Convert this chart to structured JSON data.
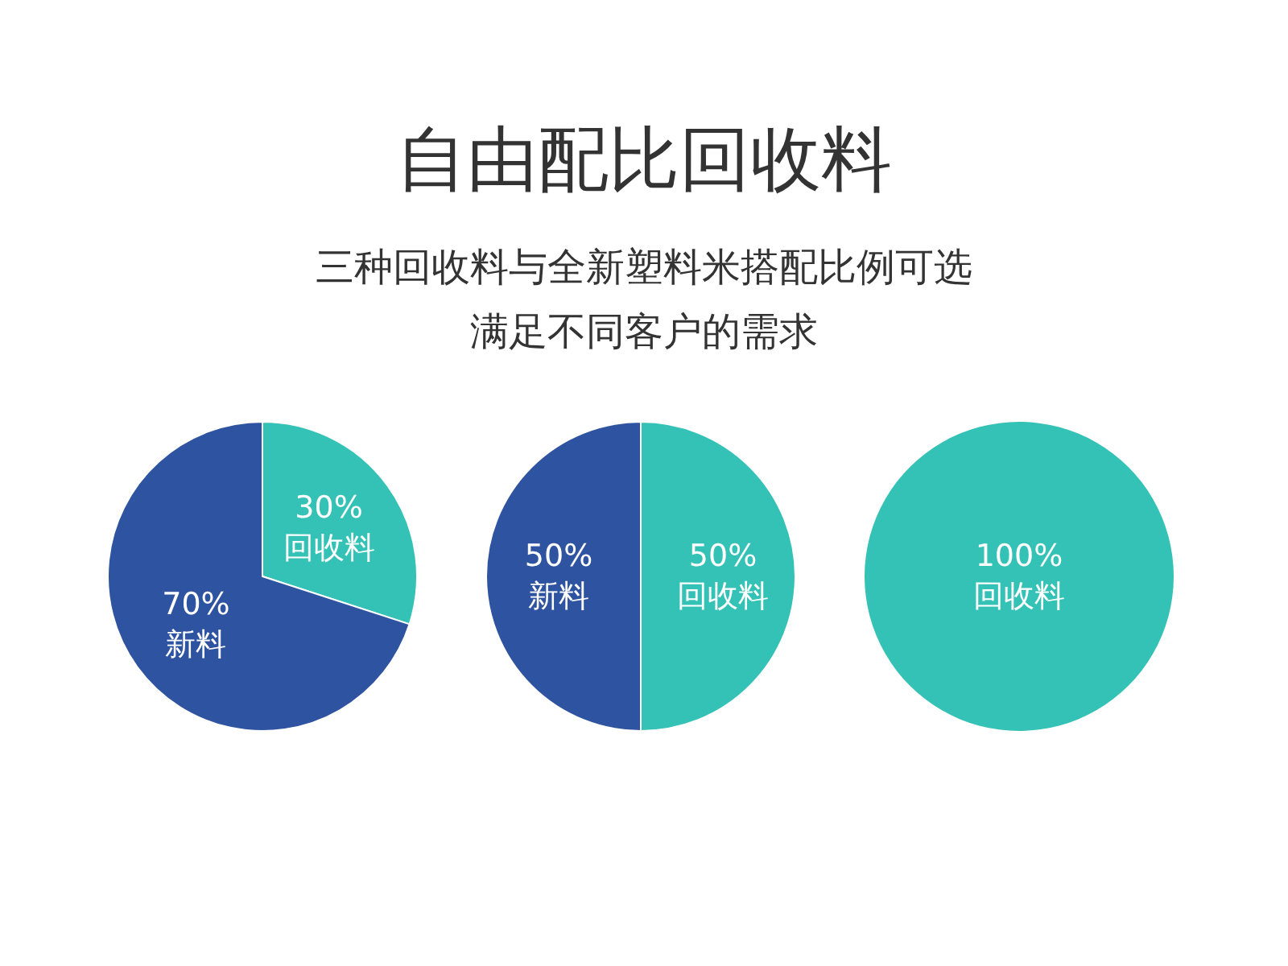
{
  "chart_data": [
    {
      "type": "other",
      "title": "自由配比回收料",
      "subtitle": "三种回收料与全新塑料米搭配比例可选满足不同客户的需求"
    },
    {
      "type": "pie",
      "categories": [
        "回收料",
        "新料"
      ],
      "values": [
        30,
        70
      ],
      "colors": [
        "#33c2b5",
        "#2e53a0"
      ],
      "value_labels": [
        "30%",
        "70%"
      ]
    },
    {
      "type": "pie",
      "categories": [
        "回收料",
        "新料"
      ],
      "values": [
        50,
        50
      ],
      "colors": [
        "#33c2b5",
        "#2e53a0"
      ],
      "value_labels": [
        "50%",
        "50%"
      ]
    },
    {
      "type": "pie",
      "categories": [
        "回收料"
      ],
      "values": [
        100
      ],
      "colors": [
        "#33c2b5"
      ],
      "value_labels": [
        "100%"
      ]
    }
  ]
}
